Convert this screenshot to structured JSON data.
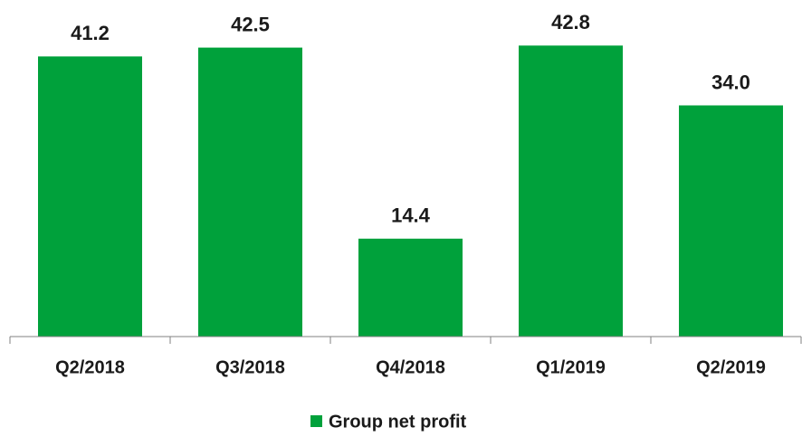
{
  "chart_data": {
    "type": "bar",
    "categories": [
      "Q2/2018",
      "Q3/2018",
      "Q4/2018",
      "Q1/2019",
      "Q2/2019"
    ],
    "series": [
      {
        "name": "Group net profit",
        "color": "#00a13b",
        "values": [
          41.2,
          42.5,
          14.4,
          42.8,
          34.0
        ],
        "value_labels": [
          "41.2",
          "42.5",
          "14.4",
          "42.8",
          "34.0"
        ]
      }
    ],
    "ylim": [
      0,
      49.5
    ],
    "legend": "bottom"
  }
}
